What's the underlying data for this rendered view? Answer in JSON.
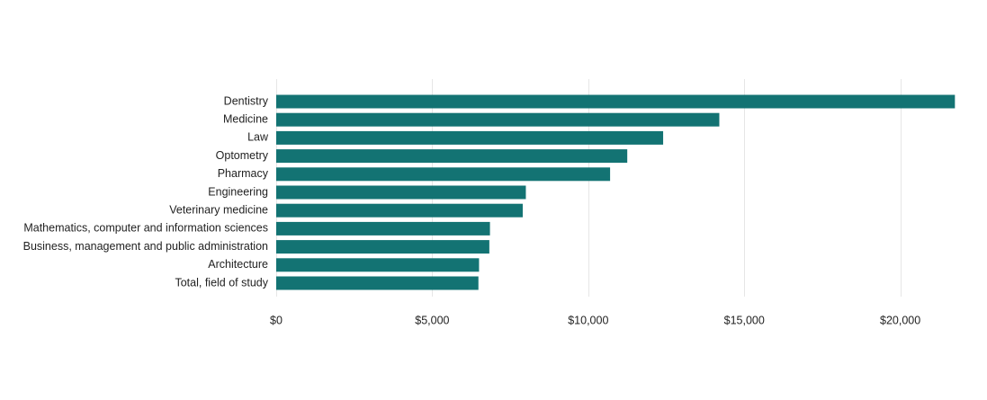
{
  "chart_data": {
    "type": "bar",
    "orientation": "horizontal",
    "title": "",
    "xlabel": "",
    "ylabel": "",
    "categories": [
      "Dentistry",
      "Medicine",
      "Law",
      "Optometry",
      "Pharmacy",
      "Engineering",
      "Veterinary medicine",
      "Mathematics, computer and information sciences",
      "Business, management and public administration",
      "Architecture",
      "Total, field of study"
    ],
    "values": [
      21750,
      14200,
      12400,
      11250,
      10700,
      8000,
      7900,
      6850,
      6830,
      6500,
      6480
    ],
    "xlim": [
      0,
      22000
    ],
    "x_ticks": [
      0,
      5000,
      10000,
      15000,
      20000
    ],
    "x_tick_labels": [
      "$0",
      "$5,000",
      "$10,000",
      "$15,000",
      "$20,000"
    ],
    "grid": "vertical",
    "legend": "none",
    "bar_color": "#137373"
  }
}
